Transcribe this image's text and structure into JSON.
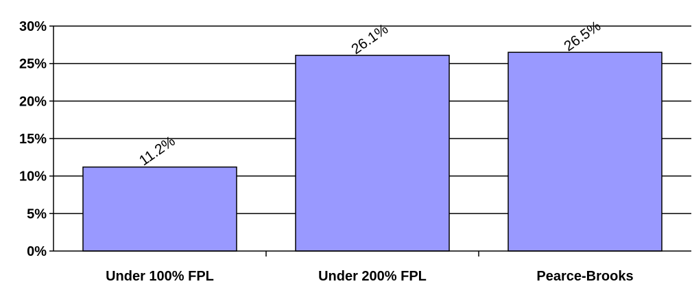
{
  "chart_data": {
    "type": "bar",
    "categories": [
      "Under 100% FPL",
      "Under 200% FPL",
      "Pearce-Brooks"
    ],
    "values": [
      11.2,
      26.1,
      26.5
    ],
    "data_labels": [
      "11.2%",
      "26.1%",
      "26.5%"
    ],
    "title": "",
    "xlabel": "",
    "ylabel": "",
    "ylim": [
      0,
      30
    ],
    "yticks": [
      0,
      5,
      10,
      15,
      20,
      25,
      30
    ],
    "ytick_labels": [
      "0%",
      "5%",
      "10%",
      "15%",
      "20%",
      "25%",
      "30%"
    ],
    "grid": true,
    "legend": "none",
    "colors": {
      "bar_fill": "#9999ff",
      "bar_stroke": "#000000",
      "grid": "#000000"
    }
  }
}
